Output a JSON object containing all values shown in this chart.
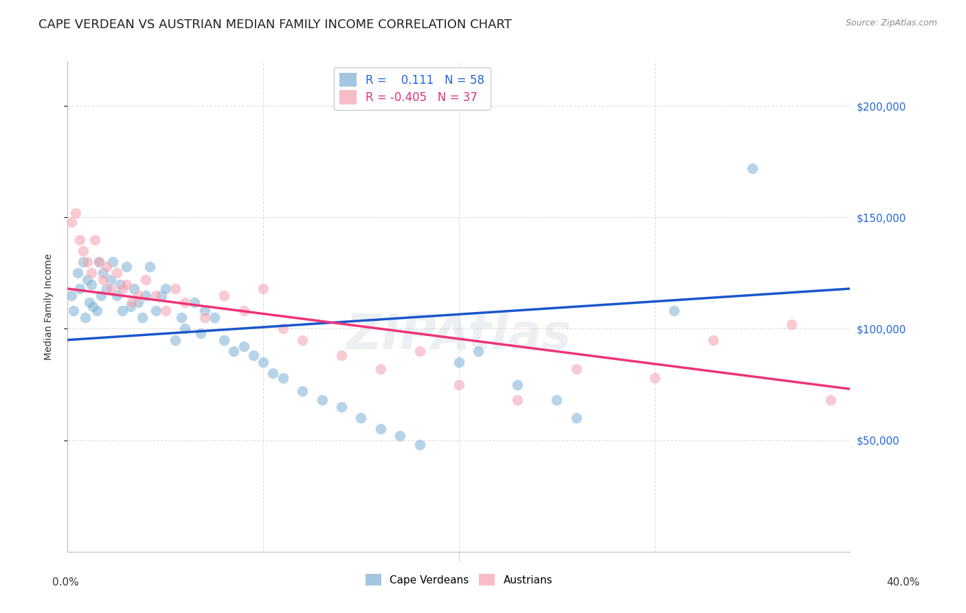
{
  "title": "CAPE VERDEAN VS AUSTRIAN MEDIAN FAMILY INCOME CORRELATION CHART",
  "source": "Source: ZipAtlas.com",
  "ylabel": "Median Family Income",
  "ytick_labels": [
    "$50,000",
    "$100,000",
    "$150,000",
    "$200,000"
  ],
  "ytick_values": [
    50000,
    100000,
    150000,
    200000
  ],
  "ymin": 0,
  "ymax": 220000,
  "xmin": 0.0,
  "xmax": 0.4,
  "legend_blue_label": "R =    0.111   N = 58",
  "legend_pink_label": "R = -0.405   N = 37",
  "blue_color": "#7BAFD4",
  "pink_color": "#F4A0B0",
  "blue_line_color": "#1A56CC",
  "pink_line_color": "#EE3377",
  "watermark": "ZIPAtlas",
  "blue_scatter_x": [
    0.002,
    0.003,
    0.005,
    0.006,
    0.008,
    0.009,
    0.01,
    0.011,
    0.012,
    0.013,
    0.015,
    0.016,
    0.017,
    0.018,
    0.02,
    0.022,
    0.023,
    0.025,
    0.027,
    0.028,
    0.03,
    0.032,
    0.034,
    0.036,
    0.038,
    0.04,
    0.042,
    0.045,
    0.048,
    0.05,
    0.055,
    0.058,
    0.06,
    0.065,
    0.068,
    0.07,
    0.075,
    0.08,
    0.085,
    0.09,
    0.095,
    0.1,
    0.105,
    0.11,
    0.12,
    0.13,
    0.14,
    0.15,
    0.16,
    0.17,
    0.18,
    0.2,
    0.21,
    0.23,
    0.25,
    0.26,
    0.31,
    0.35
  ],
  "blue_scatter_y": [
    115000,
    108000,
    125000,
    118000,
    130000,
    105000,
    122000,
    112000,
    120000,
    110000,
    108000,
    130000,
    115000,
    125000,
    118000,
    122000,
    130000,
    115000,
    120000,
    108000,
    128000,
    110000,
    118000,
    112000,
    105000,
    115000,
    128000,
    108000,
    115000,
    118000,
    95000,
    105000,
    100000,
    112000,
    98000,
    108000,
    105000,
    95000,
    90000,
    92000,
    88000,
    85000,
    80000,
    78000,
    72000,
    68000,
    65000,
    60000,
    55000,
    52000,
    48000,
    85000,
    90000,
    75000,
    68000,
    60000,
    108000,
    172000
  ],
  "pink_scatter_x": [
    0.002,
    0.004,
    0.006,
    0.008,
    0.01,
    0.012,
    0.014,
    0.016,
    0.018,
    0.02,
    0.022,
    0.025,
    0.028,
    0.03,
    0.033,
    0.036,
    0.04,
    0.045,
    0.05,
    0.055,
    0.06,
    0.07,
    0.08,
    0.09,
    0.1,
    0.11,
    0.12,
    0.14,
    0.16,
    0.18,
    0.2,
    0.23,
    0.26,
    0.3,
    0.33,
    0.37,
    0.39
  ],
  "pink_scatter_y": [
    148000,
    152000,
    140000,
    135000,
    130000,
    125000,
    140000,
    130000,
    122000,
    128000,
    118000,
    125000,
    118000,
    120000,
    112000,
    115000,
    122000,
    115000,
    108000,
    118000,
    112000,
    105000,
    115000,
    108000,
    118000,
    100000,
    95000,
    88000,
    82000,
    90000,
    75000,
    68000,
    82000,
    78000,
    95000,
    102000,
    68000
  ],
  "blue_line_x": [
    0.0,
    0.4
  ],
  "blue_line_y": [
    95000,
    118000
  ],
  "pink_line_x": [
    0.0,
    0.4
  ],
  "pink_line_y": [
    118000,
    73000
  ],
  "background_color": "#FFFFFF",
  "grid_color": "#DDDDDD",
  "title_color": "#222222",
  "axis_color": "#333333",
  "ytick_color": "#2266DD",
  "title_fontsize": 13,
  "axis_label_fontsize": 10,
  "tick_fontsize": 11,
  "source_fontsize": 9,
  "watermark_color": "#AABBCC",
  "watermark_fontsize": 52,
  "watermark_alpha": 0.22,
  "legend_text_blue_color": "#2266DD",
  "legend_text_pink_color": "#DD3377",
  "dot_size": 130,
  "dot_alpha": 0.55
}
